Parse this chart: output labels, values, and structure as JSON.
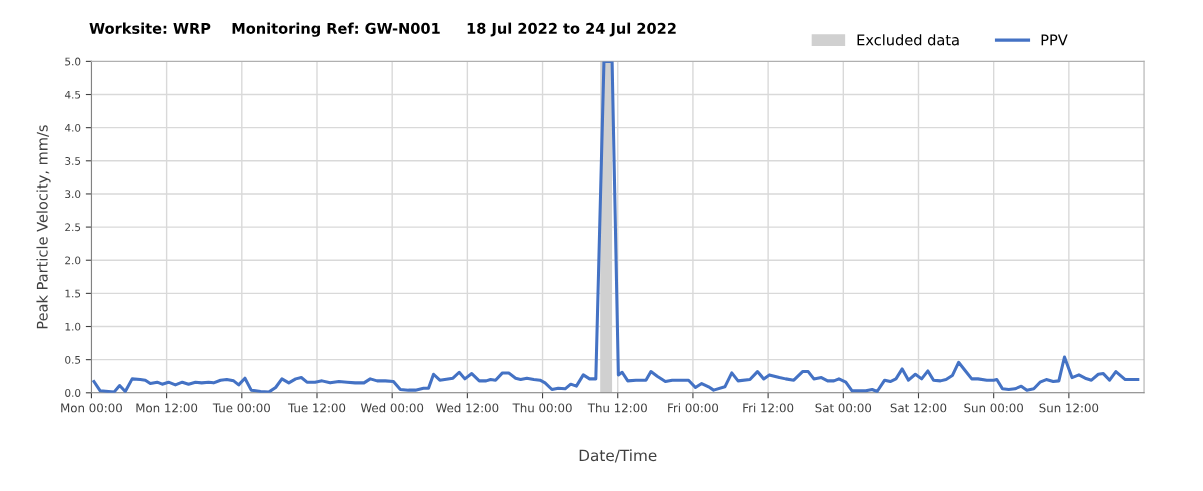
{
  "chart_data": {
    "type": "line",
    "title": "Worksite: WRP    Monitoring Ref: GW-N001     18 Jul 2022 to 24 Jul 2022",
    "xlabel": "Date/Time",
    "ylabel": "Peak Particle Velocity, mm/s",
    "xlim": [
      "2022-07-18T00:00",
      "2022-07-25T00:00"
    ],
    "ylim": [
      0,
      5.0
    ],
    "xticks": [
      {
        "value": "2022-07-18T00:00",
        "label": "Mon 00:00"
      },
      {
        "value": "2022-07-18T12:00",
        "label": "Mon 12:00"
      },
      {
        "value": "2022-07-19T00:00",
        "label": "Tue 00:00"
      },
      {
        "value": "2022-07-19T12:00",
        "label": "Tue 12:00"
      },
      {
        "value": "2022-07-20T00:00",
        "label": "Wed 00:00"
      },
      {
        "value": "2022-07-20T12:00",
        "label": "Wed 12:00"
      },
      {
        "value": "2022-07-21T00:00",
        "label": "Thu 00:00"
      },
      {
        "value": "2022-07-21T12:00",
        "label": "Thu 12:00"
      },
      {
        "value": "2022-07-22T00:00",
        "label": "Fri 00:00"
      },
      {
        "value": "2022-07-22T12:00",
        "label": "Fri 12:00"
      },
      {
        "value": "2022-07-23T00:00",
        "label": "Sat 00:00"
      },
      {
        "value": "2022-07-23T12:00",
        "label": "Sat 12:00"
      },
      {
        "value": "2022-07-24T00:00",
        "label": "Sun 00:00"
      },
      {
        "value": "2022-07-24T12:00",
        "label": "Sun 12:00"
      }
    ],
    "yticks": [
      {
        "value": 0,
        "label": "0.0"
      },
      {
        "value": 0.5,
        "label": "0.5"
      },
      {
        "value": 1,
        "label": "1.0"
      },
      {
        "value": 1.5,
        "label": "1.5"
      },
      {
        "value": 2,
        "label": "2.0"
      },
      {
        "value": 2.5,
        "label": "2.5"
      },
      {
        "value": 3,
        "label": "3.0"
      },
      {
        "value": 3.5,
        "label": "3.5"
      },
      {
        "value": 4,
        "label": "4.0"
      },
      {
        "value": 4.5,
        "label": "4.5"
      },
      {
        "value": 5,
        "label": "5.0"
      }
    ],
    "grid": true,
    "legend": "top right",
    "marker": "none",
    "line_style": "solid",
    "bands": [
      {
        "axis": "x",
        "from": "2022-07-21T09:12",
        "to": "2022-07-21T11:06",
        "label": "Excluded data",
        "color": "#d0d0d0"
      }
    ],
    "series": [
      {
        "name": "PPV",
        "color": "#4472c4",
        "x": [
          "2022-07-18T00:24",
          "2022-07-18T01:24",
          "2022-07-18T03:36",
          "2022-07-18T04:30",
          "2022-07-18T05:24",
          "2022-07-18T06:30",
          "2022-07-18T07:48",
          "2022-07-18T08:36",
          "2022-07-18T09:24",
          "2022-07-18T10:30",
          "2022-07-18T11:18",
          "2022-07-18T12:18",
          "2022-07-18T13:24",
          "2022-07-18T14:30",
          "2022-07-18T15:30",
          "2022-07-18T16:36",
          "2022-07-18T17:36",
          "2022-07-18T18:42",
          "2022-07-18T19:30",
          "2022-07-18T20:36",
          "2022-07-18T21:36",
          "2022-07-18T22:42",
          "2022-07-18T23:30",
          "2022-07-19T00:30",
          "2022-07-19T01:30",
          "2022-07-19T03:00",
          "2022-07-19T04:18",
          "2022-07-19T05:24",
          "2022-07-19T06:24",
          "2022-07-19T07:30",
          "2022-07-19T08:36",
          "2022-07-19T09:30",
          "2022-07-19T10:24",
          "2022-07-19T11:42",
          "2022-07-19T12:48",
          "2022-07-19T14:06",
          "2022-07-19T15:30",
          "2022-07-19T16:48",
          "2022-07-19T18:06",
          "2022-07-19T19:30",
          "2022-07-19T20:30",
          "2022-07-19T21:36",
          "2022-07-19T22:54",
          "2022-07-20T00:12",
          "2022-07-20T01:18",
          "2022-07-20T02:36",
          "2022-07-20T03:42",
          "2022-07-20T05:00",
          "2022-07-20T05:48",
          "2022-07-20T06:36",
          "2022-07-20T07:36",
          "2022-07-20T09:42",
          "2022-07-20T10:42",
          "2022-07-20T11:36",
          "2022-07-20T12:42",
          "2022-07-20T13:54",
          "2022-07-20T15:00",
          "2022-07-20T15:42",
          "2022-07-20T16:30",
          "2022-07-20T17:36",
          "2022-07-20T18:36",
          "2022-07-20T19:42",
          "2022-07-20T20:30",
          "2022-07-20T21:30",
          "2022-07-20T22:36",
          "2022-07-20T23:36",
          "2022-07-21T00:24",
          "2022-07-21T01:30",
          "2022-07-21T02:30",
          "2022-07-21T03:36",
          "2022-07-21T04:30",
          "2022-07-21T05:24",
          "2022-07-21T06:30",
          "2022-07-21T07:30",
          "2022-07-21T08:30",
          "2022-07-21T09:48",
          "2022-07-21T11:06",
          "2022-07-21T12:06",
          "2022-07-21T12:42",
          "2022-07-21T13:36",
          "2022-07-21T14:54",
          "2022-07-21T16:30",
          "2022-07-21T17:18",
          "2022-07-21T18:18",
          "2022-07-21T19:36",
          "2022-07-21T20:42",
          "2022-07-21T21:42",
          "2022-07-21T23:18",
          "2022-07-22T00:24",
          "2022-07-22T01:24",
          "2022-07-22T02:30",
          "2022-07-22T03:18",
          "2022-07-22T05:06",
          "2022-07-22T06:12",
          "2022-07-22T07:12",
          "2022-07-22T09:06",
          "2022-07-22T10:18",
          "2022-07-22T11:18",
          "2022-07-22T12:12",
          "2022-07-22T13:48",
          "2022-07-22T14:48",
          "2022-07-22T16:06",
          "2022-07-22T17:30",
          "2022-07-22T18:24",
          "2022-07-22T19:18",
          "2022-07-22T20:30",
          "2022-07-22T21:30",
          "2022-07-22T22:30",
          "2022-07-22T23:18",
          "2022-07-23T00:24",
          "2022-07-23T01:24",
          "2022-07-23T03:36",
          "2022-07-23T04:36",
          "2022-07-23T05:24",
          "2022-07-23T06:36",
          "2022-07-23T07:30",
          "2022-07-23T08:24",
          "2022-07-23T09:24",
          "2022-07-23T10:24",
          "2022-07-23T11:30",
          "2022-07-23T12:30",
          "2022-07-23T13:30",
          "2022-07-23T14:24",
          "2022-07-23T15:30",
          "2022-07-23T16:24",
          "2022-07-23T17:24",
          "2022-07-23T18:24",
          "2022-07-23T19:30",
          "2022-07-23T20:30",
          "2022-07-23T21:30",
          "2022-07-23T22:54",
          "2022-07-24T00:00",
          "2022-07-24T00:30",
          "2022-07-24T01:24",
          "2022-07-24T02:24",
          "2022-07-24T03:24",
          "2022-07-24T04:24",
          "2022-07-24T05:18",
          "2022-07-24T06:24",
          "2022-07-24T07:24",
          "2022-07-24T08:24",
          "2022-07-24T09:30",
          "2022-07-24T10:24",
          "2022-07-24T11:18",
          "2022-07-24T12:30",
          "2022-07-24T13:36",
          "2022-07-24T14:36",
          "2022-07-24T15:36",
          "2022-07-24T16:42",
          "2022-07-24T17:30",
          "2022-07-24T18:30",
          "2022-07-24T19:30",
          "2022-07-24T21:00",
          "2022-07-24T23:00"
        ],
        "values": [
          0.17,
          0.03,
          0.01,
          0.11,
          0.02,
          0.21,
          0.2,
          0.19,
          0.14,
          0.16,
          0.13,
          0.16,
          0.12,
          0.16,
          0.13,
          0.16,
          0.15,
          0.16,
          0.15,
          0.19,
          0.2,
          0.18,
          0.12,
          0.22,
          0.04,
          0.02,
          0.01,
          0.08,
          0.21,
          0.15,
          0.21,
          0.23,
          0.16,
          0.16,
          0.18,
          0.15,
          0.17,
          0.16,
          0.15,
          0.15,
          0.21,
          0.18,
          0.18,
          0.17,
          0.05,
          0.04,
          0.04,
          0.07,
          0.07,
          0.28,
          0.19,
          0.22,
          0.31,
          0.21,
          0.29,
          0.18,
          0.18,
          0.2,
          0.19,
          0.3,
          0.3,
          0.22,
          0.2,
          0.22,
          0.2,
          0.19,
          0.15,
          0.05,
          0.07,
          0.06,
          0.13,
          0.1,
          0.27,
          0.21,
          0.21,
          5.0,
          5.0,
          0.27,
          0.31,
          0.18,
          0.19,
          0.19,
          0.32,
          0.25,
          0.17,
          0.19,
          0.19,
          0.19,
          0.08,
          0.14,
          0.09,
          0.04,
          0.09,
          0.3,
          0.18,
          0.2,
          0.32,
          0.21,
          0.27,
          0.23,
          0.21,
          0.19,
          0.32,
          0.32,
          0.21,
          0.23,
          0.18,
          0.18,
          0.21,
          0.16,
          0.03,
          0.03,
          0.05,
          0.02,
          0.19,
          0.17,
          0.21,
          0.36,
          0.19,
          0.28,
          0.21,
          0.33,
          0.19,
          0.18,
          0.2,
          0.26,
          0.46,
          0.33,
          0.21,
          0.21,
          0.19,
          0.19,
          0.2,
          0.06,
          0.05,
          0.06,
          0.1,
          0.04,
          0.06,
          0.16,
          0.2,
          0.17,
          0.18,
          0.54,
          0.23,
          0.27,
          0.22,
          0.19,
          0.28,
          0.29,
          0.19,
          0.32,
          0.2,
          0.2
        ]
      }
    ]
  }
}
